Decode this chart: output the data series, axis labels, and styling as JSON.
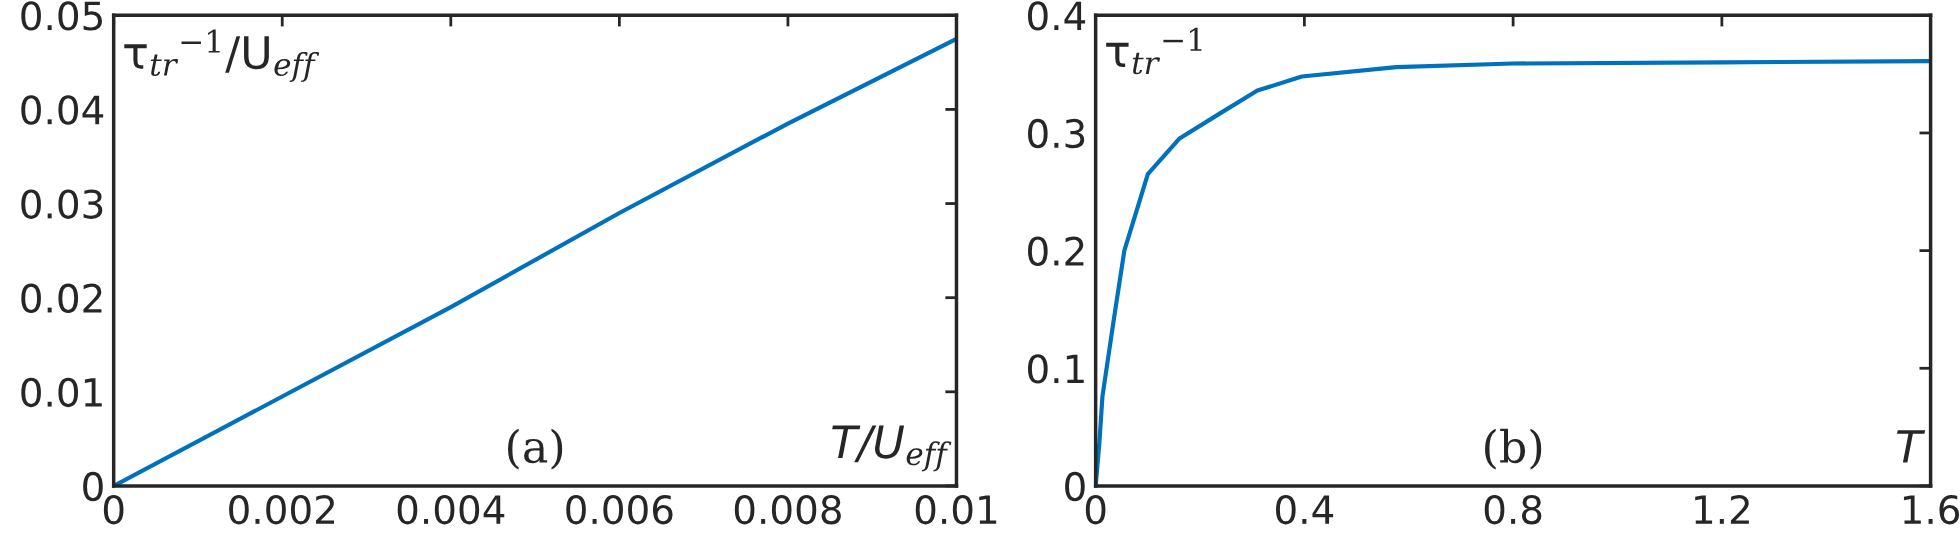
{
  "chart_data": [
    {
      "type": "line",
      "xlabel": "T/U$_{eff}$",
      "ylabel": "τ$_{tr}$$^{−1}$/U$_{eff}$",
      "annotations": [
        "(a)"
      ],
      "x": [
        0,
        0.002,
        0.004,
        0.006,
        0.008,
        0.01
      ],
      "series": [
        {
          "color": "#0072bd",
          "values": [
            0,
            0.0095,
            0.019,
            0.029,
            0.0385,
            0.0475
          ]
        }
      ],
      "xlim": [
        0,
        0.01
      ],
      "xticks": [
        0,
        0.002,
        0.004,
        0.006,
        0.008,
        0.01
      ],
      "ylim": [
        0,
        0.05
      ],
      "yticks": [
        0,
        0.01,
        0.02,
        0.03,
        0.04,
        0.05
      ],
      "grid": false,
      "legend": false
    },
    {
      "type": "line",
      "xlabel": "T",
      "ylabel": "τ$_{tr}$$^{−1}$",
      "annotations": [
        "(b)"
      ],
      "x": [
        0,
        0.0074,
        0.013,
        0.034,
        0.055,
        0.1,
        0.16,
        0.236,
        0.31,
        0.395,
        0.576,
        0.8,
        1.2,
        1.6
      ],
      "series": [
        {
          "color": "#0072bd",
          "values": [
            0,
            0.038,
            0.076,
            0.139,
            0.2,
            0.265,
            0.295,
            0.316,
            0.336,
            0.348,
            0.356,
            0.359,
            0.36,
            0.361
          ]
        }
      ],
      "xlim": [
        0,
        1.6
      ],
      "xticks": [
        0,
        0.4,
        0.8,
        1.2,
        1.6
      ],
      "ylim": [
        0,
        0.4
      ],
      "yticks": [
        0,
        0.1,
        0.2,
        0.3,
        0.4
      ],
      "grid": false,
      "legend": false
    }
  ]
}
